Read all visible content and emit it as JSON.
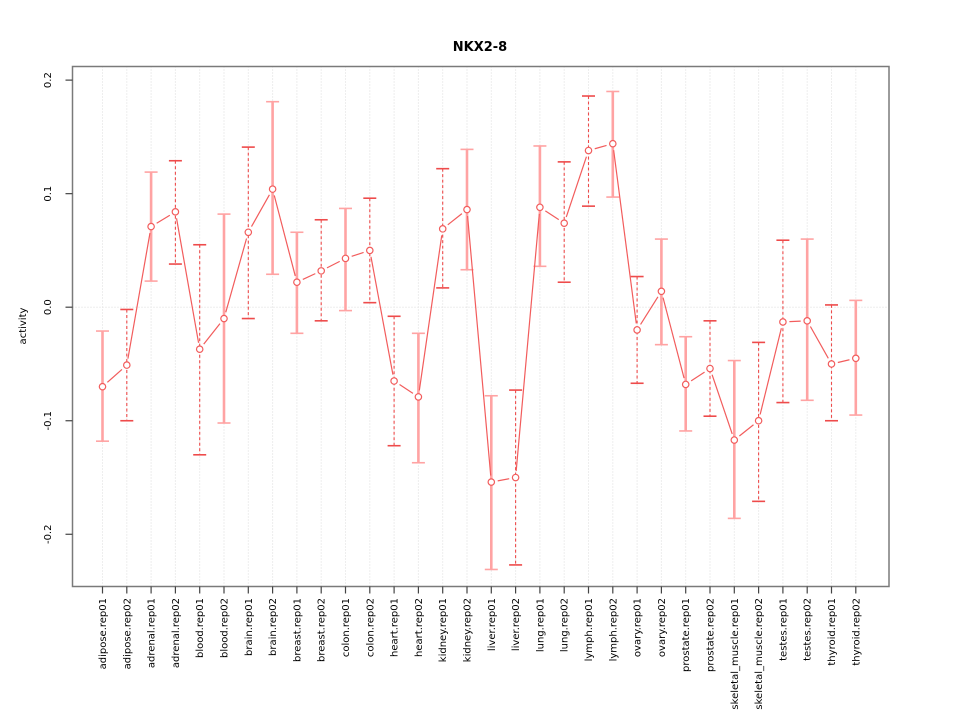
{
  "chart_data": {
    "type": "line",
    "title": "NKX2-8",
    "xlabel": "",
    "ylabel": "activity",
    "legend": "none",
    "grid": "dotted vertical gridline per category plus dotted horizontal line at y=0",
    "ylim": [
      -0.246,
      0.212
    ],
    "yticks": [
      -0.2,
      -0.1,
      0.0,
      0.1,
      0.2
    ],
    "ytick_labels": [
      "-0.2",
      "-0.1",
      "0.0",
      "0.1",
      "0.2"
    ],
    "point_marker": "open-circle",
    "colors": {
      "point_line": "#f25c5c",
      "solid_error_bar": "#ffa3a3",
      "dashed_error_bar": "#ee4b4b",
      "gridline": "#dcdcdc",
      "plot_border": "#7a7a7a",
      "tick": "#444444"
    },
    "categories": [
      "adipose.rep01",
      "adipose.rep02",
      "adrenal.rep01",
      "adrenal.rep02",
      "blood.rep01",
      "blood.rep02",
      "brain.rep01",
      "brain.rep02",
      "breast.rep01",
      "breast.rep02",
      "colon.rep01",
      "colon.rep02",
      "heart.rep01",
      "heart.rep02",
      "kidney.rep01",
      "kidney.rep02",
      "liver.rep01",
      "liver.rep02",
      "lung.rep01",
      "lung.rep02",
      "lymph.rep01",
      "lymph.rep02",
      "ovary.rep01",
      "ovary.rep02",
      "prostate.rep01",
      "prostate.rep02",
      "skeletal_muscle.rep01",
      "skeletal_muscle.rep02",
      "testes.rep01",
      "testes.rep02",
      "thyroid.rep01",
      "thyroid.rep02"
    ],
    "series": [
      {
        "name": "activity",
        "values": [
          -0.07,
          -0.051,
          0.071,
          0.084,
          -0.037,
          -0.01,
          0.066,
          0.104,
          0.022,
          0.032,
          0.043,
          0.05,
          -0.065,
          -0.079,
          0.069,
          0.086,
          -0.154,
          -0.15,
          0.088,
          0.074,
          0.138,
          0.144,
          -0.02,
          0.014,
          -0.068,
          -0.054,
          -0.117,
          -0.1,
          -0.013,
          -0.012,
          -0.05,
          -0.045
        ],
        "error_low": [
          -0.118,
          -0.1,
          0.023,
          0.038,
          -0.13,
          -0.102,
          -0.01,
          0.029,
          -0.023,
          -0.012,
          -0.003,
          0.004,
          -0.122,
          -0.137,
          0.017,
          0.033,
          -0.231,
          -0.227,
          0.036,
          0.022,
          0.089,
          0.097,
          -0.067,
          -0.033,
          -0.109,
          -0.096,
          -0.186,
          -0.171,
          -0.084,
          -0.082,
          -0.1,
          -0.095
        ],
        "error_high": [
          -0.021,
          -0.002,
          0.119,
          0.129,
          0.055,
          0.082,
          0.141,
          0.181,
          0.066,
          0.077,
          0.087,
          0.096,
          -0.008,
          -0.023,
          0.122,
          0.139,
          -0.078,
          -0.073,
          0.142,
          0.128,
          0.186,
          0.19,
          0.027,
          0.06,
          -0.026,
          -0.012,
          -0.047,
          -0.031,
          0.059,
          0.06,
          0.002,
          0.006
        ],
        "error_bar_styles": [
          "solid",
          "dashed",
          "solid",
          "dashed",
          "dashed",
          "solid",
          "dashed",
          "solid",
          "solid",
          "dashed",
          "solid",
          "dashed",
          "dashed",
          "solid",
          "dashed",
          "solid",
          "solid",
          "dashed",
          "solid",
          "dashed",
          "dashed",
          "solid",
          "dashed",
          "solid",
          "solid",
          "dashed",
          "solid",
          "dashed",
          "dashed",
          "solid",
          "dashed",
          "solid"
        ]
      }
    ]
  }
}
